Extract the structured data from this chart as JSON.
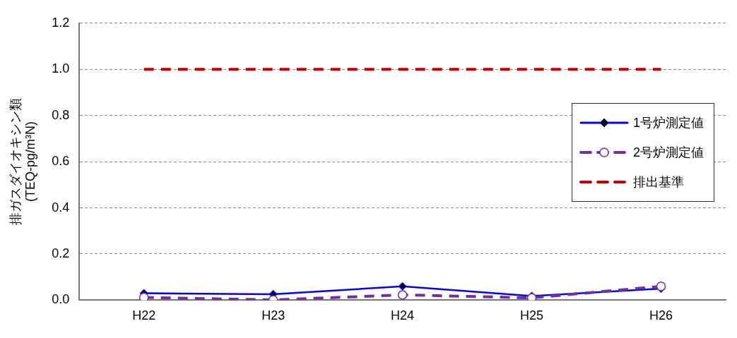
{
  "chart_data": {
    "type": "line",
    "ylabel": "排ガスダイオキシン類\n(TEQ-pg/m³N)",
    "categories": [
      "H22",
      "H23",
      "H24",
      "H25",
      "H26"
    ],
    "series": [
      {
        "name": "1号炉測定値",
        "color": "#0000ff",
        "values": [
          0.03,
          0.026,
          0.06,
          0.018,
          0.05
        ],
        "marker": "diamond",
        "line_style": "solid"
      },
      {
        "name": "2号炉測定値",
        "color": "#7030a0",
        "values": [
          0.012,
          0.001,
          0.023,
          0.01,
          0.06
        ],
        "marker": "circle",
        "line_style": "dashed"
      },
      {
        "name": "排出基準",
        "color": "#c00000",
        "values": [
          1.0,
          1.0,
          1.0,
          1.0,
          1.0
        ],
        "marker": "none",
        "line_style": "dashed"
      }
    ],
    "ylim": [
      0,
      1.2
    ],
    "yticks": [
      {
        "value": 0,
        "label": "0.0"
      },
      0.2,
      0.4,
      0.6,
      0.8,
      {
        "value": 1,
        "label": "1.0"
      },
      1.2
    ],
    "grid": "y",
    "legend": "right"
  }
}
